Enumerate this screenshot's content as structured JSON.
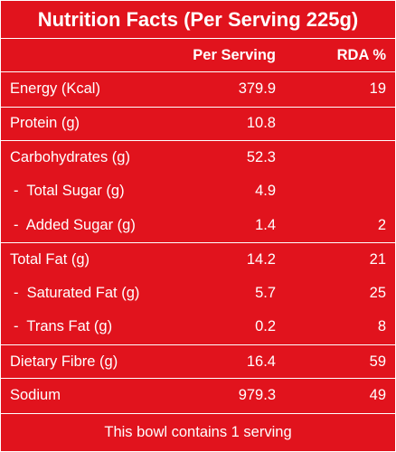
{
  "title": "Nutrition Facts (Per Serving 225g)",
  "columns": {
    "per_serving": "Per Serving",
    "rda": "RDA %"
  },
  "rows": [
    {
      "label": "Energy (Kcal)",
      "value": "379.9",
      "rda": "19",
      "sub": false
    },
    {
      "label": "Protein (g)",
      "value": "10.8",
      "rda": "",
      "sub": false
    },
    {
      "label": "Carbohydrates (g)",
      "value": "52.3",
      "rda": "",
      "sub": false
    },
    {
      "label": "-  Total Sugar (g)",
      "value": "4.9",
      "rda": "",
      "sub": true
    },
    {
      "label": "-  Added Sugar (g)",
      "value": "1.4",
      "rda": "2",
      "sub": true
    },
    {
      "label": "Total Fat (g)",
      "value": "14.2",
      "rda": "21",
      "sub": false
    },
    {
      "label": "-  Saturated Fat (g)",
      "value": "5.7",
      "rda": "25",
      "sub": true
    },
    {
      "label": "-  Trans Fat (g)",
      "value": "0.2",
      "rda": "8",
      "sub": true
    },
    {
      "label": "Dietary Fibre (g)",
      "value": "16.4",
      "rda": "59",
      "sub": false
    },
    {
      "label": "Sodium",
      "value": "979.3",
      "rda": "49",
      "sub": false
    }
  ],
  "footer": "This bowl contains 1 serving",
  "colors": {
    "background": "#e1131d",
    "text": "#ffffff"
  }
}
